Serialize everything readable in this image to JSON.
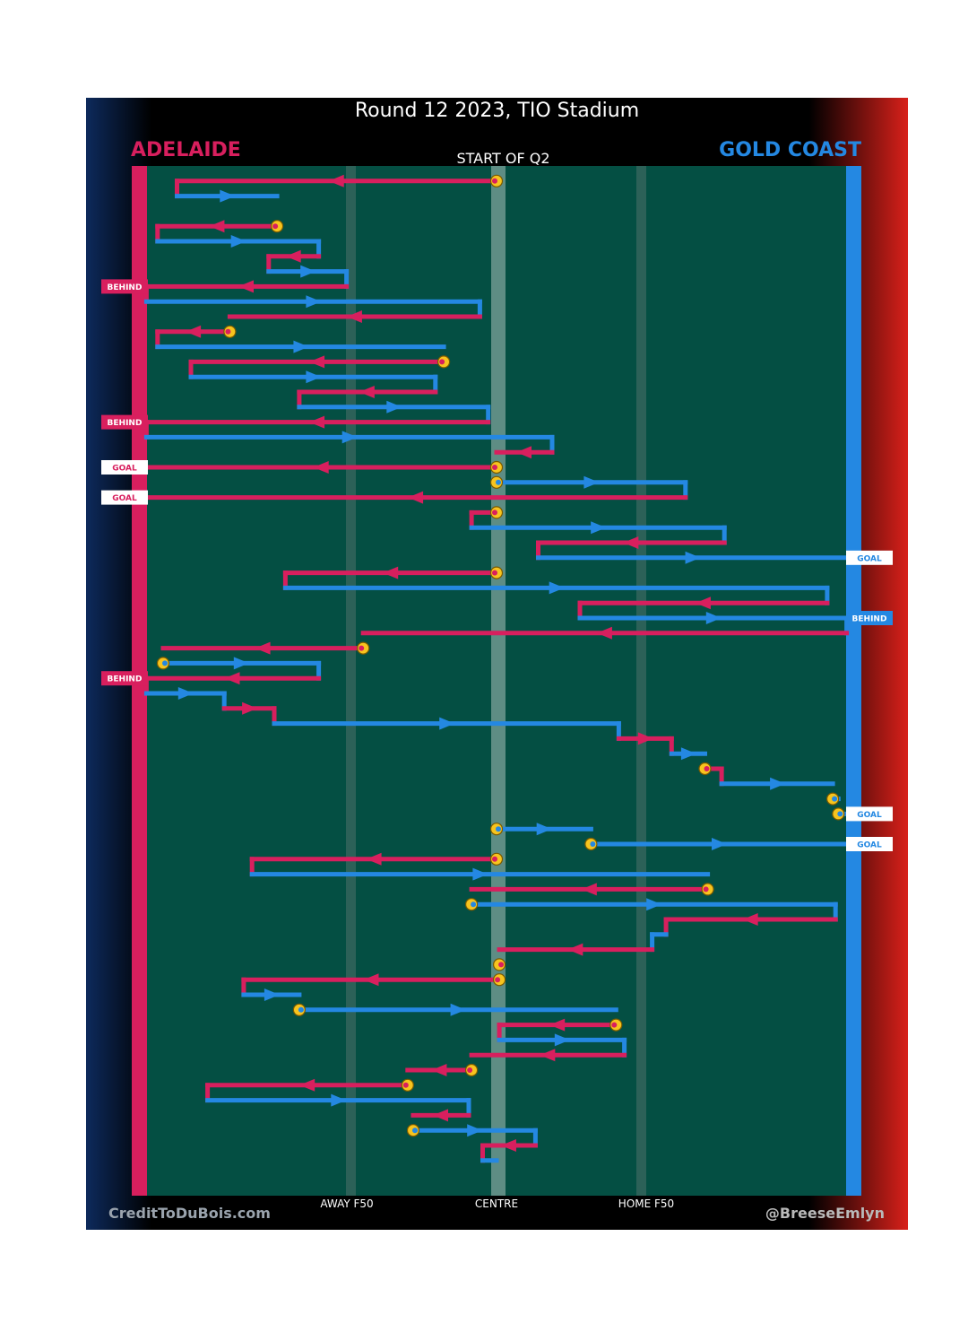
{
  "header": {
    "title": "Round 12 2023, TIO Stadium",
    "home_team": "ADELAIDE",
    "away_team": "GOLD COAST",
    "period_label": "START OF Q2"
  },
  "footer": {
    "left_credit": "CreditToDuBois.com",
    "right_credit": "@BreeseEmlyn"
  },
  "colors": {
    "home": "#d81f5e",
    "away": "#2488e2",
    "ground": "#044f43",
    "stoppage": "#f7c41e"
  },
  "chart_data": {
    "type": "line",
    "title": "Round 12 2023, TIO Stadium",
    "subtitle": "START OF Q2",
    "x_axis": {
      "ticks": [
        "AWAY F50",
        "CENTRE",
        "HOME F50"
      ],
      "tick_positions": [
        -50,
        0,
        50
      ],
      "range": [
        -125,
        125
      ]
    },
    "series": [
      {
        "name": "ADELAIDE",
        "color": "#d81f5e"
      },
      {
        "name": "GOLD COAST",
        "color": "#2488e2"
      }
    ],
    "segments": [
      {
        "team": "h",
        "x1": 0,
        "x2": -115,
        "y": 1,
        "start_stoppage": true
      },
      {
        "team": "a",
        "x1": -115,
        "x2": -79,
        "y": 2
      },
      {
        "team": "h",
        "x1": -79,
        "x2": -122,
        "y": 4,
        "start_stoppage": true
      },
      {
        "team": "a",
        "x1": -122,
        "x2": -64,
        "y": 5
      },
      {
        "team": "h",
        "x1": -64,
        "x2": -82,
        "y": 6
      },
      {
        "team": "a",
        "x1": -82,
        "x2": -54,
        "y": 7
      },
      {
        "team": "h",
        "x1": -54,
        "x2": -126,
        "y": 8,
        "outcome": "BEHIND"
      },
      {
        "team": "a",
        "x1": -126,
        "x2": -6,
        "y": 9
      },
      {
        "team": "h",
        "x1": -6,
        "x2": -96,
        "y": 10
      },
      {
        "team": "h",
        "x1": -96,
        "x2": -122,
        "y": 11,
        "start_stoppage": true
      },
      {
        "team": "a",
        "x1": -122,
        "x2": -19,
        "y": 12
      },
      {
        "team": "h",
        "x1": -19,
        "x2": -110,
        "y": 13,
        "start_stoppage": true
      },
      {
        "team": "a",
        "x1": -110,
        "x2": -22,
        "y": 14
      },
      {
        "team": "h",
        "x1": -22,
        "x2": -71,
        "y": 15
      },
      {
        "team": "a",
        "x1": -71,
        "x2": -3,
        "y": 16
      },
      {
        "team": "h",
        "x1": -3,
        "x2": -126,
        "y": 17,
        "outcome": "BEHIND"
      },
      {
        "team": "a",
        "x1": -126,
        "x2": 20,
        "y": 18
      },
      {
        "team": "h",
        "x1": 20,
        "x2": 0,
        "y": 19
      },
      {
        "team": "h",
        "x1": 0,
        "x2": -126,
        "y": 20,
        "start_stoppage": true,
        "outcome": "GOAL"
      },
      {
        "team": "a",
        "x1": 0,
        "x2": 68,
        "y": 21,
        "start_stoppage": true
      },
      {
        "team": "h",
        "x1": 68,
        "x2": -126,
        "y": 22,
        "outcome": "GOAL"
      },
      {
        "team": "h",
        "x1": 0,
        "x2": -9,
        "y": 23,
        "start_stoppage": true
      },
      {
        "team": "a",
        "x1": -9,
        "x2": 82,
        "y": 24
      },
      {
        "team": "h",
        "x1": 82,
        "x2": 15,
        "y": 25
      },
      {
        "team": "a",
        "x1": 15,
        "x2": 126,
        "y": 26,
        "outcome": "GOAL"
      },
      {
        "team": "h",
        "x1": 0,
        "x2": -76,
        "y": 27,
        "start_stoppage": true
      },
      {
        "team": "a",
        "x1": -76,
        "x2": 119,
        "y": 28
      },
      {
        "team": "h",
        "x1": 119,
        "x2": 30,
        "y": 29
      },
      {
        "team": "a",
        "x1": 30,
        "x2": 126,
        "y": 30,
        "outcome": "BEHIND"
      },
      {
        "team": "h",
        "x1": 126,
        "x2": -48,
        "y": 31
      },
      {
        "team": "h",
        "x1": -48,
        "x2": -120,
        "y": 32,
        "start_stoppage": true
      },
      {
        "team": "a",
        "x1": -120,
        "x2": -64,
        "y": 33,
        "start_stoppage": true
      },
      {
        "team": "h",
        "x1": -64,
        "x2": -126,
        "y": 34,
        "outcome": "BEHIND"
      },
      {
        "team": "a",
        "x1": -126,
        "x2": -98,
        "y": 35
      },
      {
        "team": "h",
        "x1": -98,
        "x2": -80,
        "y": 36
      },
      {
        "team": "a",
        "x1": -80,
        "x2": 44,
        "y": 37
      },
      {
        "team": "h",
        "x1": 44,
        "x2": 63,
        "y": 38
      },
      {
        "team": "a",
        "x1": 63,
        "x2": 75,
        "y": 39
      },
      {
        "team": "h",
        "x1": 75,
        "x2": 81,
        "y": 40,
        "start_stoppage": true
      },
      {
        "team": "a",
        "x1": 81,
        "x2": 121,
        "y": 41
      },
      {
        "team": "a",
        "x1": 121,
        "x2": 123,
        "y": 42,
        "start_stoppage": true
      },
      {
        "team": "a",
        "x1": 123,
        "x2": 126,
        "y": 43,
        "start_stoppage": true,
        "outcome": "GOAL"
      },
      {
        "team": "a",
        "x1": 0,
        "x2": 34,
        "y": 44,
        "start_stoppage": true
      },
      {
        "team": "a",
        "x1": 34,
        "x2": 126,
        "y": 45,
        "start_stoppage": true,
        "outcome": "GOAL"
      },
      {
        "team": "h",
        "x1": 0,
        "x2": -88,
        "y": 46,
        "start_stoppage": true
      },
      {
        "team": "a",
        "x1": -88,
        "x2": 76,
        "y": 47
      },
      {
        "team": "h",
        "x1": 76,
        "x2": -9,
        "y": 48,
        "start_stoppage": true
      },
      {
        "team": "a",
        "x1": -9,
        "x2": 122,
        "y": 49,
        "start_stoppage": true
      },
      {
        "team": "h",
        "x1": 122,
        "x2": 61,
        "y": 50
      },
      {
        "team": "a",
        "x1": 61,
        "x2": 56,
        "y": 51
      },
      {
        "team": "h",
        "x1": 56,
        "x2": 1,
        "y": 52
      },
      {
        "team": "h",
        "x1": 1,
        "x2": 1,
        "y": 53,
        "start_stoppage": true
      },
      {
        "team": "h",
        "x1": 1,
        "x2": -91,
        "y": 54,
        "start_stoppage": true
      },
      {
        "team": "a",
        "x1": -91,
        "x2": -71,
        "y": 55
      },
      {
        "team": "a",
        "x1": -71,
        "x2": 43,
        "y": 56,
        "start_stoppage": true
      },
      {
        "team": "h",
        "x1": 43,
        "x2": 1,
        "y": 57,
        "start_stoppage": true
      },
      {
        "team": "a",
        "x1": 1,
        "x2": 46,
        "y": 58
      },
      {
        "team": "h",
        "x1": 46,
        "x2": -9,
        "y": 59
      },
      {
        "team": "h",
        "x1": -9,
        "x2": -32,
        "y": 60,
        "start_stoppage": true
      },
      {
        "team": "h",
        "x1": -32,
        "x2": -104,
        "y": 61,
        "start_stoppage": true
      },
      {
        "team": "a",
        "x1": -104,
        "x2": -10,
        "y": 62
      },
      {
        "team": "h",
        "x1": -10,
        "x2": -30,
        "y": 63
      },
      {
        "team": "a",
        "x1": -30,
        "x2": 14,
        "y": 64,
        "start_stoppage": true
      },
      {
        "team": "h",
        "x1": 14,
        "x2": -5,
        "y": 65
      },
      {
        "team": "a",
        "x1": -5,
        "x2": 0,
        "y": 66
      }
    ]
  }
}
